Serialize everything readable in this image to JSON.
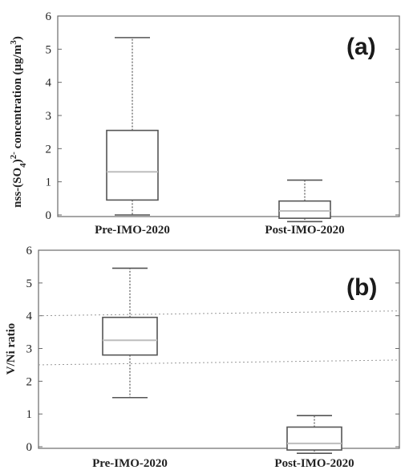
{
  "chart_data": [
    {
      "type": "box",
      "panel_label": "(a)",
      "ylabel_main": "nss-(SO",
      "ylabel_sub": "4",
      "ylabel_mid": ")",
      "ylabel_sup": "2-",
      "ylabel_rest": " concentration (μg/m",
      "ylabel_sup2": "3",
      "ylabel_end": ")",
      "ylim": [
        0,
        6
      ],
      "yticks": [
        "0",
        "1",
        "2",
        "3",
        "4",
        "5",
        "6"
      ],
      "categories": [
        "Pre-IMO-2020",
        "Post-IMO-2020"
      ],
      "boxes": [
        {
          "category": "Pre-IMO-2020",
          "whisker_low": 0.0,
          "q1": 0.45,
          "median": 1.3,
          "q3": 2.55,
          "whisker_high": 5.35
        },
        {
          "category": "Post-IMO-2020",
          "whisker_low": -0.2,
          "q1": -0.1,
          "median": 0.12,
          "q3": 0.42,
          "whisker_high": 1.05
        }
      ],
      "reference_lines": []
    },
    {
      "type": "box",
      "panel_label": "(b)",
      "ylabel": "V/Ni ratio",
      "ylim": [
        0,
        6
      ],
      "yticks": [
        "0",
        "1",
        "2",
        "3",
        "4",
        "5",
        "6"
      ],
      "categories": [
        "Pre-IMO-2020",
        "Post-IMO-2020"
      ],
      "boxes": [
        {
          "category": "Pre-IMO-2020",
          "whisker_low": 1.5,
          "q1": 2.8,
          "median": 3.25,
          "q3": 3.95,
          "whisker_high": 5.45
        },
        {
          "category": "Post-IMO-2020",
          "whisker_low": -0.2,
          "q1": -0.1,
          "median": 0.1,
          "q3": 0.6,
          "whisker_high": 0.95
        }
      ],
      "reference_lines": [
        4.0,
        2.5
      ]
    }
  ]
}
